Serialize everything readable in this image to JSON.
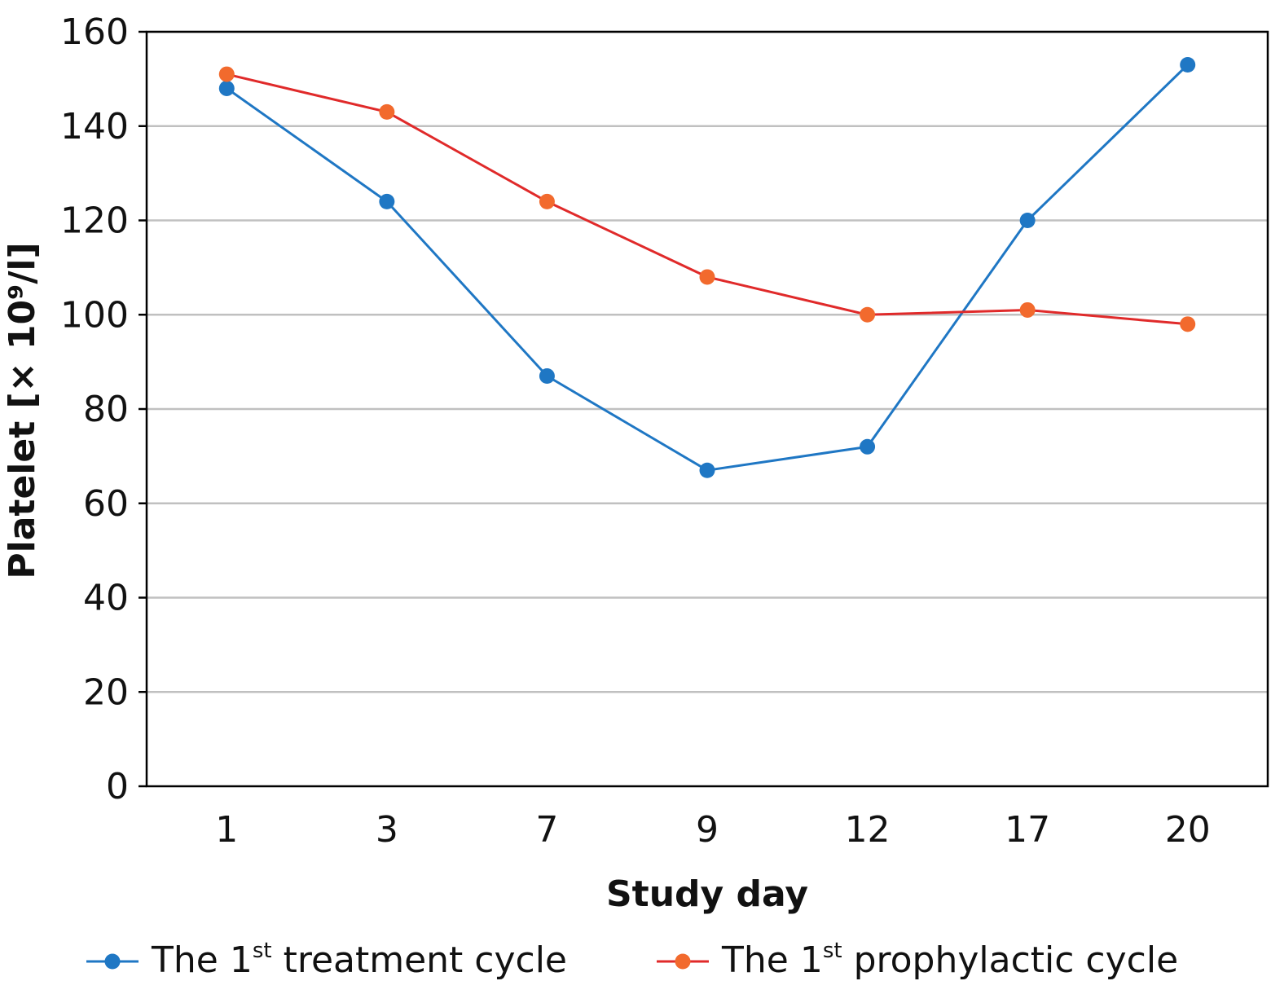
{
  "chart_data": {
    "type": "line",
    "categories": [
      "1",
      "3",
      "7",
      "9",
      "12",
      "17",
      "20"
    ],
    "series": [
      {
        "name": "The 1st treatment cycle",
        "name_parts": {
          "prefix": "The 1",
          "superscript": "st",
          "suffix": " treatment cycle"
        },
        "color": "#1f77c4",
        "values": [
          148,
          124,
          87,
          67,
          72,
          120,
          153
        ]
      },
      {
        "name": "The 1st prophylactic cycle",
        "name_parts": {
          "prefix": "The 1",
          "superscript": "st",
          "suffix": " prophylactic cycle"
        },
        "color": "#e02a2a",
        "marker_color": "#f26a2d",
        "values": [
          151,
          143,
          124,
          108,
          100,
          101,
          98
        ]
      }
    ],
    "title": "",
    "xlabel": "Study day",
    "ylabel": "Platelet [× 10⁹/l]",
    "ylim": [
      0,
      160
    ],
    "yticks": [
      "0",
      "20",
      "40",
      "60",
      "80",
      "100",
      "120",
      "140",
      "160"
    ],
    "grid": true,
    "legend_position": "bottom"
  },
  "colors": {
    "gridline": "#c0c0c0",
    "axis": "#000000"
  }
}
